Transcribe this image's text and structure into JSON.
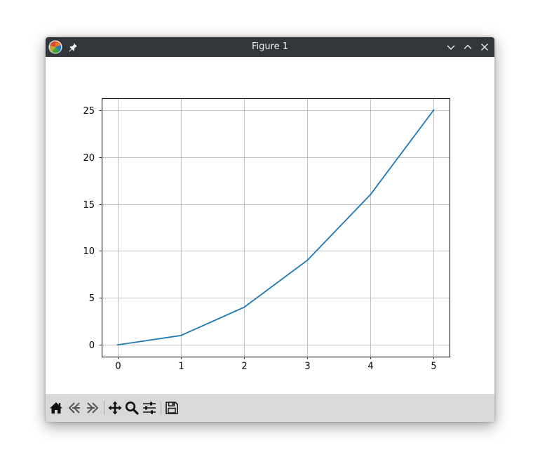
{
  "window": {
    "title": "Figure 1"
  },
  "toolbar": {
    "buttons": [
      {
        "name": "home",
        "icon": "home-icon"
      },
      {
        "name": "back",
        "icon": "arrow-left-icon"
      },
      {
        "name": "forward",
        "icon": "arrow-right-icon"
      },
      {
        "name": "pan",
        "icon": "move-icon"
      },
      {
        "name": "zoom",
        "icon": "magnifier-icon"
      },
      {
        "name": "configure-subplots",
        "icon": "sliders-icon"
      },
      {
        "name": "save",
        "icon": "floppy-disk-icon"
      }
    ]
  },
  "chart_data": {
    "type": "line",
    "x": [
      0,
      1,
      2,
      3,
      4,
      5
    ],
    "series": [
      {
        "values": [
          0,
          1,
          4,
          9,
          16,
          25
        ],
        "color": "#1f77b4"
      }
    ],
    "xticks": [
      "0",
      "1",
      "2",
      "3",
      "4",
      "5"
    ],
    "yticks": [
      "0",
      "5",
      "10",
      "15",
      "20",
      "25"
    ],
    "xlim": [
      -0.25,
      5.25
    ],
    "ylim": [
      -1.25,
      26.25
    ],
    "grid": true,
    "title": "",
    "xlabel": "",
    "ylabel": ""
  }
}
